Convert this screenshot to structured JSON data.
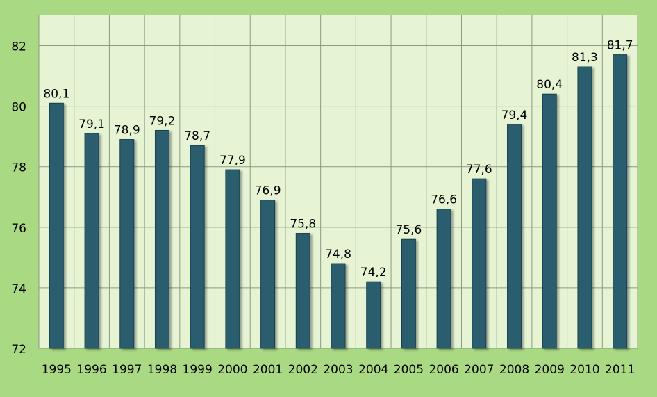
{
  "chart_data": {
    "type": "bar",
    "title": "",
    "xlabel": "",
    "ylabel": "",
    "categories": [
      "1995",
      "1996",
      "1997",
      "1998",
      "1999",
      "2000",
      "2001",
      "2002",
      "2003",
      "2004",
      "2005",
      "2006",
      "2007",
      "2008",
      "2009",
      "2010",
      "2011"
    ],
    "values": [
      80.1,
      79.1,
      78.9,
      79.2,
      78.7,
      77.9,
      76.9,
      75.8,
      74.8,
      74.2,
      75.6,
      76.6,
      77.6,
      79.4,
      80.4,
      81.3,
      81.7
    ],
    "value_labels": [
      "80,1",
      "79,1",
      "78,9",
      "79,2",
      "78,7",
      "77,9",
      "76,9",
      "75,8",
      "74,8",
      "74,2",
      "75,6",
      "76,6",
      "77,6",
      "79,4",
      "80,4",
      "81,3",
      "81,7"
    ],
    "yticks": [
      72,
      74,
      76,
      78,
      80,
      82
    ],
    "ylim": [
      72,
      83
    ],
    "grid": true,
    "legend": "none",
    "colors": {
      "background": "#a9d982",
      "plot_area": "#e6f4d4",
      "bar_fill": "#2a5d6e",
      "bar_stroke": "#1b3f4c",
      "grid": "#8c9a86"
    }
  }
}
